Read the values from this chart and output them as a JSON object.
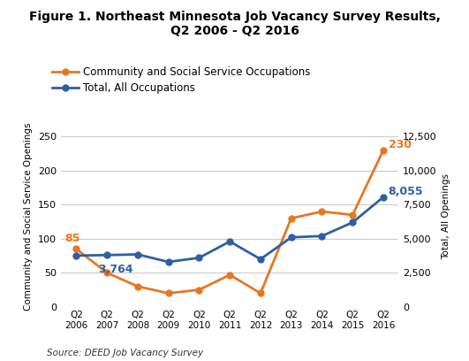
{
  "title": "Figure 1. Northeast Minnesota Job Vacancy Survey Results,\nQ2 2006 - Q2 2016",
  "x_labels": [
    "Q2\n2006",
    "Q2\n2007",
    "Q2\n2008",
    "Q2\n2009",
    "Q2\n2010",
    "Q2\n2011",
    "Q2\n2012",
    "Q2\n2013",
    "Q2\n2014",
    "Q2\n2015",
    "Q2\n2016"
  ],
  "orange_label": "Community and Social Service Occupations",
  "blue_label": "Total, All Occupations",
  "orange_values": [
    85,
    50,
    30,
    20,
    25,
    47,
    20,
    130,
    140,
    135,
    230
  ],
  "blue_values": [
    3764,
    3800,
    3850,
    3300,
    3600,
    4800,
    3500,
    5100,
    5200,
    6200,
    8055
  ],
  "orange_color": "#E87722",
  "blue_color": "#2E5FA3",
  "left_ylim": [
    0,
    265
  ],
  "right_ylim": [
    0,
    13250
  ],
  "left_yticks": [
    0,
    50,
    100,
    150,
    200,
    250
  ],
  "right_yticks": [
    0,
    2500,
    5000,
    7500,
    10000,
    12500
  ],
  "left_ylabel": "Community and Social Service Openings",
  "right_ylabel": "Total, All Openings",
  "source_text": "Source: DEED Job Vacancy Survey",
  "annotate_orange_first": "85",
  "annotate_blue_first": "3,764",
  "annotate_orange_last": "230",
  "annotate_blue_last": "8,055",
  "background_color": "#FFFFFF",
  "grid_color": "#CCCCCC"
}
